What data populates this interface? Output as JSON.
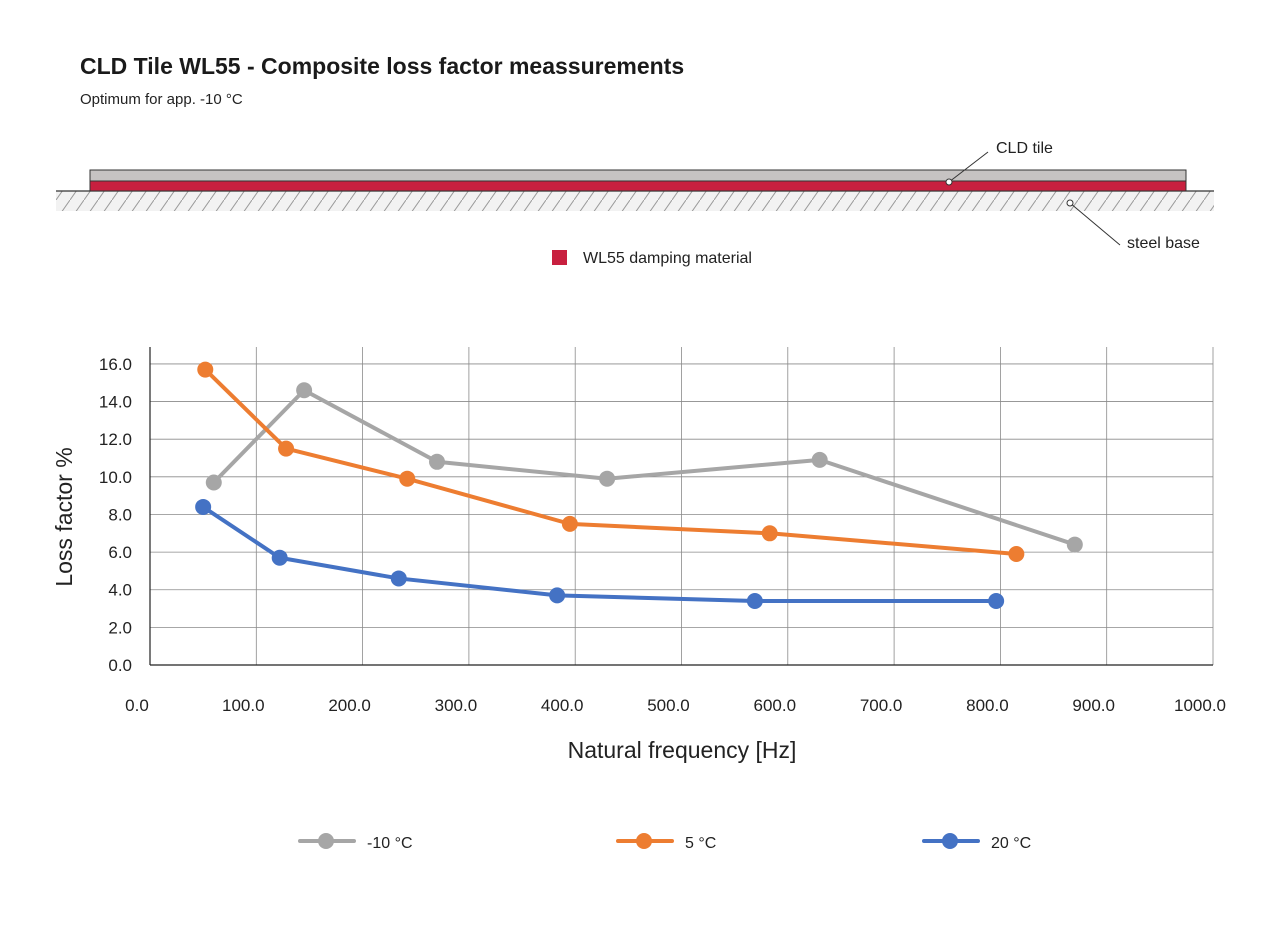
{
  "header": {
    "title": "CLD Tile WL55 - Composite loss factor meassurements",
    "subtitle": "Optimum for app. -10 °C"
  },
  "diagram": {
    "cld_tile_label": "CLD tile",
    "steel_base_label": "steel base",
    "damping_legend_label": "WL55 damping material",
    "colors": {
      "tile": "#c6c3c2",
      "damping": "#c8203f",
      "base_hatch": "#9a9a9a"
    }
  },
  "chart_data": {
    "type": "line",
    "title": "",
    "xlabel": "Natural frequency [Hz]",
    "ylabel": "Loss factor %",
    "xlim": [
      0,
      1000
    ],
    "ylim": [
      0,
      16
    ],
    "xticks": [
      0,
      100,
      200,
      300,
      400,
      500,
      600,
      700,
      800,
      900,
      1000
    ],
    "yticks": [
      0,
      2,
      4,
      6,
      8,
      10,
      12,
      14,
      16
    ],
    "xtick_labels": [
      "0.0",
      "100.0",
      "200.0",
      "300.0",
      "400.0",
      "500.0",
      "600.0",
      "700.0",
      "800.0",
      "900.0",
      "1000.0"
    ],
    "ytick_labels": [
      "0.0",
      "2.0",
      "4.0",
      "6.0",
      "8.0",
      "10.0",
      "12.0",
      "14.0",
      "16.0"
    ],
    "grid": true,
    "legend_position": "bottom",
    "series": [
      {
        "name": "-10 °C",
        "color": "#a6a6a6",
        "x": [
          60,
          145,
          270,
          430,
          630,
          870
        ],
        "y": [
          9.7,
          14.6,
          10.8,
          9.9,
          10.9,
          6.4
        ]
      },
      {
        "name": "5 °C",
        "color": "#ed7d31",
        "x": [
          52,
          128,
          242,
          395,
          583,
          815
        ],
        "y": [
          15.7,
          11.5,
          9.9,
          7.5,
          7.0,
          5.9
        ]
      },
      {
        "name": "20 °C",
        "color": "#4472c4",
        "x": [
          50,
          122,
          234,
          383,
          569,
          796
        ],
        "y": [
          8.4,
          5.7,
          4.6,
          3.7,
          3.4,
          3.4
        ]
      }
    ]
  }
}
